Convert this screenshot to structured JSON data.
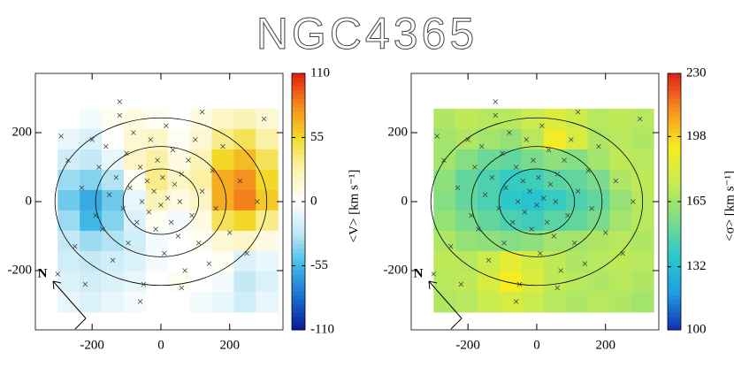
{
  "chart_data": {
    "type": "kinematic-map",
    "title": "NGC4365",
    "panels": [
      {
        "colorbar_label": "<V> [km s⁻¹]",
        "clim": [
          -110,
          110
        ],
        "cticks": [
          110,
          55,
          0,
          -55,
          -110
        ],
        "colormap": [
          "#0a1a9a",
          "#1a6ccc",
          "#40b8e6",
          "#bfe8f5",
          "#ffffff",
          "#fbf3b0",
          "#f3d828",
          "#f58a1c",
          "#e01e10"
        ],
        "xlim": [
          -365,
          355
        ],
        "ylim": [
          -372,
          372
        ],
        "xticks": [
          -200,
          0,
          200
        ],
        "yticks": [
          -200,
          0,
          200
        ],
        "map_x": [
          -268,
          -204,
          -140,
          -76,
          -12,
          52,
          116,
          180,
          244,
          308
        ],
        "map_y": [
          240,
          181,
          122,
          63,
          4,
          -55,
          -114,
          -173,
          -232,
          -291
        ],
        "map": [
          [
            0,
            -5,
            5,
            10,
            5,
            0,
            10,
            20,
            25,
            15
          ],
          [
            -10,
            -15,
            0,
            15,
            20,
            5,
            15,
            35,
            45,
            30
          ],
          [
            -20,
            -25,
            -10,
            20,
            30,
            10,
            25,
            55,
            65,
            45
          ],
          [
            -35,
            -40,
            -30,
            5,
            35,
            20,
            30,
            70,
            80,
            55
          ],
          [
            -45,
            -60,
            -45,
            -10,
            25,
            10,
            20,
            70,
            85,
            60
          ],
          [
            -35,
            -55,
            -40,
            -15,
            5,
            -5,
            10,
            45,
            55,
            35
          ],
          [
            -25,
            -35,
            -30,
            -20,
            -5,
            0,
            5,
            15,
            20,
            10
          ],
          [
            -20,
            -25,
            -20,
            -15,
            -5,
            0,
            0,
            5,
            -15,
            -10
          ],
          [
            -15,
            -20,
            -15,
            -10,
            0,
            5,
            0,
            -5,
            -25,
            -15
          ],
          [
            -10,
            -15,
            -10,
            -5,
            0,
            0,
            -5,
            -10,
            -20,
            -10
          ]
        ],
        "points_x": [
          -300,
          -290,
          -270,
          -250,
          -230,
          -220,
          -200,
          -190,
          -180,
          -170,
          -160,
          -150,
          -140,
          -130,
          -120,
          -110,
          -100,
          -95,
          -90,
          -80,
          -70,
          -60,
          -55,
          -50,
          -40,
          -35,
          -30,
          -20,
          -15,
          -10,
          0,
          5,
          10,
          15,
          20,
          30,
          35,
          40,
          50,
          55,
          60,
          70,
          80,
          90,
          100,
          110,
          120,
          140,
          150,
          160,
          180,
          200,
          230,
          250,
          280,
          300,
          -120,
          -60,
          60,
          120
        ],
        "points_y": [
          -210,
          190,
          120,
          -130,
          40,
          -240,
          180,
          -40,
          100,
          -80,
          160,
          20,
          -170,
          70,
          290,
          -20,
          140,
          -120,
          40,
          200,
          -60,
          100,
          0,
          -240,
          60,
          -30,
          180,
          30,
          -80,
          120,
          -10,
          70,
          -150,
          220,
          10,
          -60,
          150,
          50,
          -100,
          0,
          80,
          -200,
          120,
          -40,
          180,
          -120,
          30,
          -180,
          90,
          -20,
          160,
          -90,
          60,
          -150,
          0,
          240,
          250,
          -290,
          -250,
          260
        ],
        "ellipses": [
          {
            "a": 308,
            "b": 243
          },
          {
            "a": 190,
            "b": 160
          },
          {
            "a": 110,
            "b": 95
          }
        ],
        "compass_label": "N"
      },
      {
        "colorbar_label": "<σ> [km s⁻¹]",
        "clim": [
          100,
          230
        ],
        "cticks": [
          230,
          198,
          165,
          132,
          100
        ],
        "colormap": [
          "#1430b4",
          "#1e9ee0",
          "#28c8cc",
          "#7ddc8a",
          "#c8ec50",
          "#f8ec20",
          "#f89020",
          "#e0201a"
        ],
        "xlim": [
          -365,
          355
        ],
        "ylim": [
          -372,
          372
        ],
        "xticks": [
          -200,
          0,
          200
        ],
        "yticks": [
          -200,
          0,
          200
        ],
        "map_x": [
          -268,
          -204,
          -140,
          -76,
          -12,
          52,
          116,
          180,
          244,
          308
        ],
        "map_y": [
          240,
          181,
          122,
          63,
          4,
          -55,
          -114,
          -173,
          -232,
          -291
        ],
        "map": [
          [
            168,
            172,
            170,
            170,
            175,
            182,
            176,
            170,
            172,
            170
          ],
          [
            165,
            168,
            165,
            162,
            170,
            190,
            180,
            168,
            170,
            168
          ],
          [
            165,
            158,
            152,
            150,
            155,
            160,
            158,
            165,
            172,
            170
          ],
          [
            160,
            150,
            145,
            140,
            142,
            148,
            150,
            155,
            168,
            172
          ],
          [
            158,
            150,
            145,
            138,
            135,
            140,
            145,
            150,
            162,
            170
          ],
          [
            162,
            155,
            150,
            145,
            142,
            148,
            150,
            155,
            165,
            170
          ],
          [
            168,
            162,
            160,
            158,
            160,
            165,
            165,
            168,
            170,
            168
          ],
          [
            172,
            170,
            175,
            185,
            178,
            172,
            168,
            170,
            172,
            170
          ],
          [
            170,
            172,
            180,
            192,
            182,
            172,
            170,
            168,
            170,
            168
          ],
          [
            168,
            170,
            175,
            180,
            175,
            170,
            168,
            170,
            168,
            165
          ]
        ],
        "points_x": [
          -300,
          -290,
          -270,
          -250,
          -230,
          -220,
          -200,
          -190,
          -180,
          -170,
          -160,
          -150,
          -140,
          -130,
          -120,
          -110,
          -100,
          -95,
          -90,
          -80,
          -70,
          -60,
          -55,
          -50,
          -40,
          -35,
          -30,
          -20,
          -15,
          -10,
          0,
          5,
          10,
          15,
          20,
          30,
          35,
          40,
          50,
          55,
          60,
          70,
          80,
          90,
          100,
          110,
          120,
          140,
          150,
          160,
          180,
          200,
          230,
          250,
          280,
          300,
          -120,
          -60,
          60,
          120
        ],
        "points_y": [
          -210,
          190,
          120,
          -130,
          40,
          -240,
          180,
          -40,
          100,
          -80,
          160,
          20,
          -170,
          70,
          290,
          -20,
          140,
          -120,
          40,
          200,
          -60,
          100,
          0,
          -240,
          60,
          -30,
          180,
          30,
          -80,
          120,
          -10,
          70,
          -150,
          220,
          10,
          -60,
          150,
          50,
          -100,
          0,
          80,
          -200,
          120,
          -40,
          180,
          -120,
          30,
          -180,
          90,
          -20,
          160,
          -90,
          60,
          -150,
          0,
          240,
          250,
          -290,
          -250,
          260
        ],
        "ellipses": [
          {
            "a": 308,
            "b": 243
          },
          {
            "a": 190,
            "b": 160
          },
          {
            "a": 110,
            "b": 95
          }
        ],
        "compass_label": "N"
      }
    ]
  }
}
